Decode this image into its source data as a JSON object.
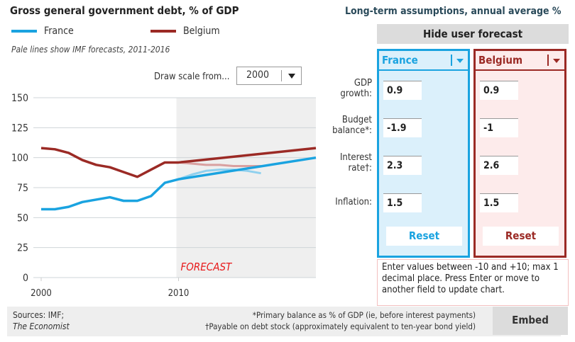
{
  "header": {
    "title": "Gross general government debt, % of GDP",
    "note": "Pale lines show IMF forecasts, 2011-2016",
    "draw_scale_label": "Draw scale from...",
    "draw_scale_value": "2000"
  },
  "legend": [
    {
      "label": "France",
      "color": "#1aa3e0"
    },
    {
      "label": "Belgium",
      "color": "#9b2a25"
    }
  ],
  "chart_data": {
    "type": "line",
    "title": "Gross general government debt, % of GDP",
    "xlabel": "",
    "ylabel": "",
    "xlim": [
      2000,
      2020
    ],
    "ylim": [
      0,
      150
    ],
    "yticks": [
      0,
      25,
      50,
      75,
      100,
      125,
      150
    ],
    "xticks": [
      2000,
      2010
    ],
    "forecast_label": "FORECAST",
    "forecast_start": 2010,
    "series": [
      {
        "name": "France",
        "color": "#1aa3e0",
        "x": [
          2000,
          2001,
          2002,
          2003,
          2004,
          2005,
          2006,
          2007,
          2008,
          2009,
          2010,
          2020
        ],
        "y": [
          57,
          57,
          59,
          63,
          65,
          67,
          64,
          64,
          68,
          79,
          82,
          100
        ]
      },
      {
        "name": "Belgium",
        "color": "#9b2a25",
        "x": [
          2000,
          2001,
          2002,
          2003,
          2004,
          2005,
          2006,
          2007,
          2008,
          2009,
          2010,
          2020
        ],
        "y": [
          108,
          107,
          104,
          98,
          94,
          92,
          88,
          84,
          90,
          96,
          96,
          108
        ]
      },
      {
        "name": "France IMF forecast",
        "color": "#8fd0ee",
        "x": [
          2010,
          2011,
          2012,
          2013,
          2014,
          2015,
          2016
        ],
        "y": [
          82,
          86,
          89,
          90,
          90,
          89,
          87
        ]
      },
      {
        "name": "Belgium IMF forecast",
        "color": "#d9a0a0",
        "x": [
          2010,
          2011,
          2012,
          2013,
          2014,
          2015,
          2016
        ],
        "y": [
          96,
          95,
          94,
          94,
          93,
          93,
          93
        ]
      }
    ]
  },
  "panel": {
    "title": "Long-term assumptions, annual average %",
    "hide_button": "Hide user forecast",
    "labels": [
      [
        "GDP",
        "growth:"
      ],
      [
        "Budget",
        "balance*:"
      ],
      [
        "Interest",
        "rate†:"
      ],
      [
        "",
        "Inflation:"
      ]
    ],
    "countries": [
      {
        "name": "France",
        "values": [
          "0.9",
          "-1.9",
          "2.3",
          "1.5"
        ],
        "reset": "Reset"
      },
      {
        "name": "Belgium",
        "values": [
          "0.9",
          "-1",
          "2.6",
          "1.5"
        ],
        "reset": "Reset"
      }
    ],
    "help": "Enter values between -10 and +10; max 1 decimal place. Press Enter or move to another field to update chart."
  },
  "footer": {
    "sources": "Sources: IMF;",
    "publisher": "The Economist",
    "note1": "*Primary balance as % of GDP (ie, before interest payments)",
    "note2": "†Payable on debt stock (approximately equivalent to ten-year bond yield)",
    "embed": "Embed"
  }
}
